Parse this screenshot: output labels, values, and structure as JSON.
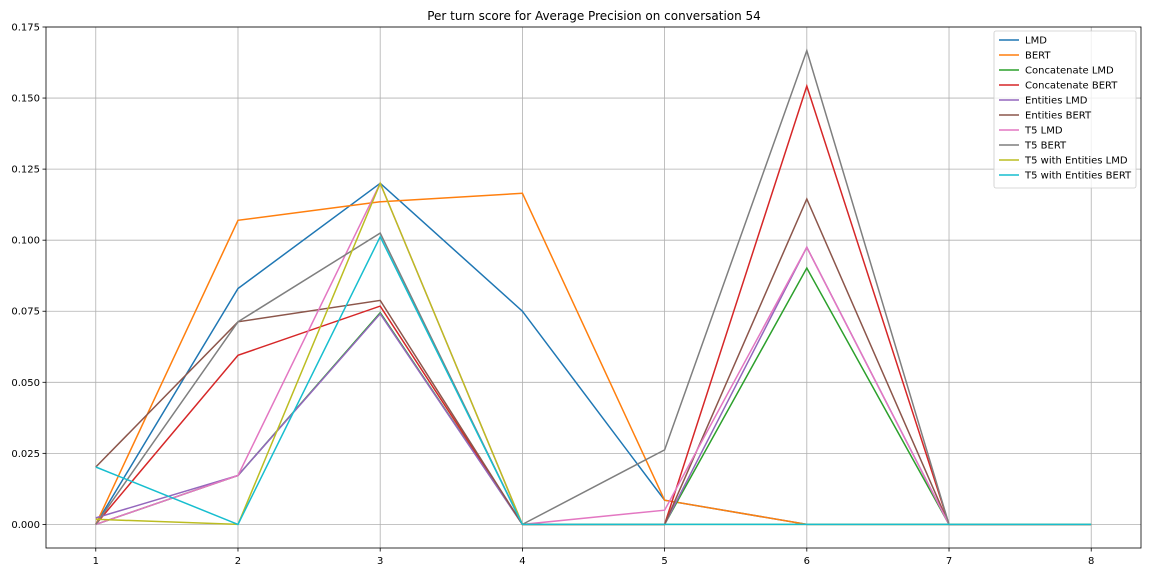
{
  "chart_data": {
    "type": "line",
    "title": "Per turn score for Average Precision on conversation 54",
    "xlabel": "",
    "ylabel": "",
    "x": [
      1,
      2,
      3,
      4,
      5,
      6,
      7,
      8
    ],
    "xlim": [
      0.65,
      8.35
    ],
    "ylim": [
      -0.0083,
      0.175
    ],
    "yticks": [
      "0.000",
      "0.025",
      "0.050",
      "0.075",
      "0.100",
      "0.125",
      "0.150",
      "0.175"
    ],
    "xticks": [
      "1",
      "2",
      "3",
      "4",
      "5",
      "6",
      "7",
      "8"
    ],
    "grid": true,
    "legend_position": "top-right",
    "series": [
      {
        "name": "LMD",
        "color": "#1f77b4",
        "values": [
          0.0,
          0.083,
          0.12,
          0.075,
          0.0085,
          0.0,
          0.0,
          0.0
        ]
      },
      {
        "name": "BERT",
        "color": "#ff7f0e",
        "values": [
          0.0,
          0.107,
          0.1135,
          0.1165,
          0.0085,
          0.0,
          0.0,
          0.0
        ]
      },
      {
        "name": "Concatenate LMD",
        "color": "#2ca02c",
        "values": [
          0.0,
          0.0172,
          0.0745,
          0.0,
          0.0,
          0.0902,
          0.0,
          0.0
        ]
      },
      {
        "name": "Concatenate BERT",
        "color": "#d62728",
        "values": [
          0.0,
          0.0595,
          0.0768,
          0.0,
          0.0,
          0.1542,
          0.0,
          0.0
        ]
      },
      {
        "name": "Entities LMD",
        "color": "#9467bd",
        "values": [
          0.0023,
          0.0172,
          0.0741,
          0.0,
          0.0,
          0.0975,
          0.0,
          0.0
        ]
      },
      {
        "name": "Entities BERT",
        "color": "#8c564b",
        "values": [
          0.0202,
          0.0713,
          0.0788,
          0.0,
          0.0,
          0.1145,
          0.0,
          0.0
        ]
      },
      {
        "name": "T5 LMD",
        "color": "#e377c2",
        "values": [
          0.0,
          0.0172,
          0.12,
          0.0,
          0.005,
          0.0975,
          0.0,
          0.0
        ]
      },
      {
        "name": "T5 BERT",
        "color": "#7f7f7f",
        "values": [
          0.0,
          0.0713,
          0.1025,
          0.0,
          0.0262,
          0.1667,
          0.0,
          0.0
        ]
      },
      {
        "name": "T5 with Entities LMD",
        "color": "#bcbd22",
        "values": [
          0.0018,
          0.0,
          0.12,
          0.0,
          0.0,
          0.0,
          0.0,
          0.0
        ]
      },
      {
        "name": "T5 with Entities BERT",
        "color": "#17becf",
        "values": [
          0.0202,
          0.0,
          0.1012,
          0.0,
          0.0,
          0.0,
          0.0,
          0.0
        ]
      }
    ]
  }
}
